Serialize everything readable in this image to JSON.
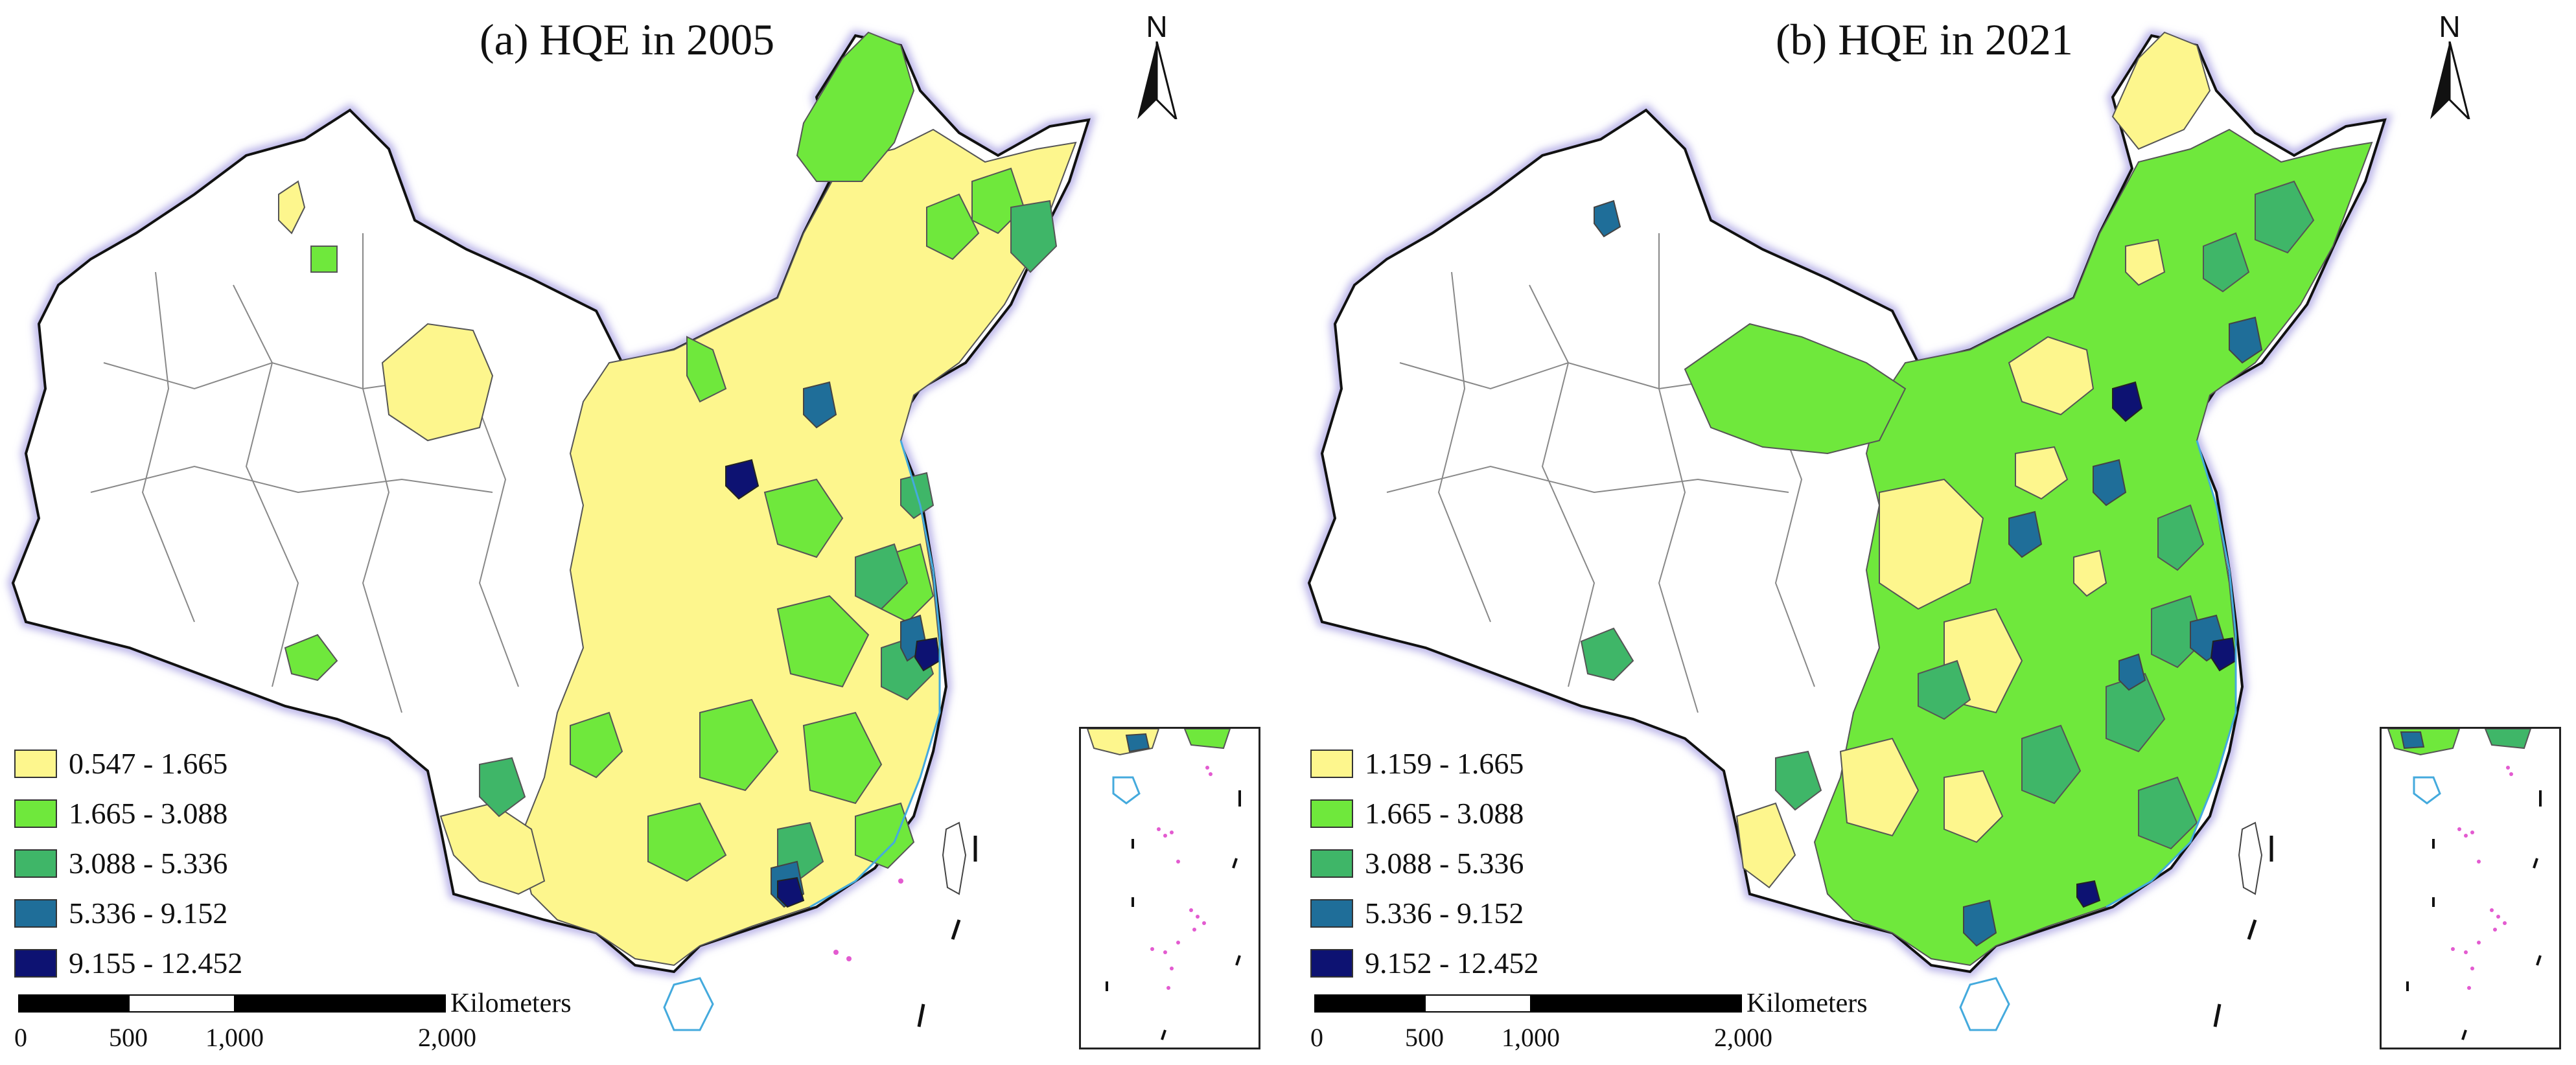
{
  "panels": [
    {
      "title": "(a) HQE in 2005",
      "north_label": "N",
      "legend": [
        {
          "label": "0.547 - 1.665",
          "color": "#fdf68d"
        },
        {
          "label": "1.665 - 3.088",
          "color": "#6fe83c"
        },
        {
          "label": "3.088 - 5.336",
          "color": "#3fb668"
        },
        {
          "label": "5.336 - 9.152",
          "color": "#1f6e99"
        },
        {
          "label": "9.155 - 12.452",
          "color": "#0d1272"
        }
      ],
      "scale": {
        "unit": "Kilometers",
        "ticks": [
          "0",
          "500",
          "1,000",
          "2,000"
        ]
      }
    },
    {
      "title": "(b) HQE in 2021",
      "north_label": "N",
      "legend": [
        {
          "label": "1.159 - 1.665",
          "color": "#fdf68d"
        },
        {
          "label": "1.665 - 3.088",
          "color": "#6fe83c"
        },
        {
          "label": "3.088 - 5.336",
          "color": "#3fb668"
        },
        {
          "label": "5.336 - 9.152",
          "color": "#1f6e99"
        },
        {
          "label": "9.152 - 12.452",
          "color": "#0d1272"
        }
      ],
      "scale": {
        "unit": "Kilometers",
        "ticks": [
          "0",
          "500",
          "1,000",
          "2,000"
        ]
      }
    }
  ]
}
